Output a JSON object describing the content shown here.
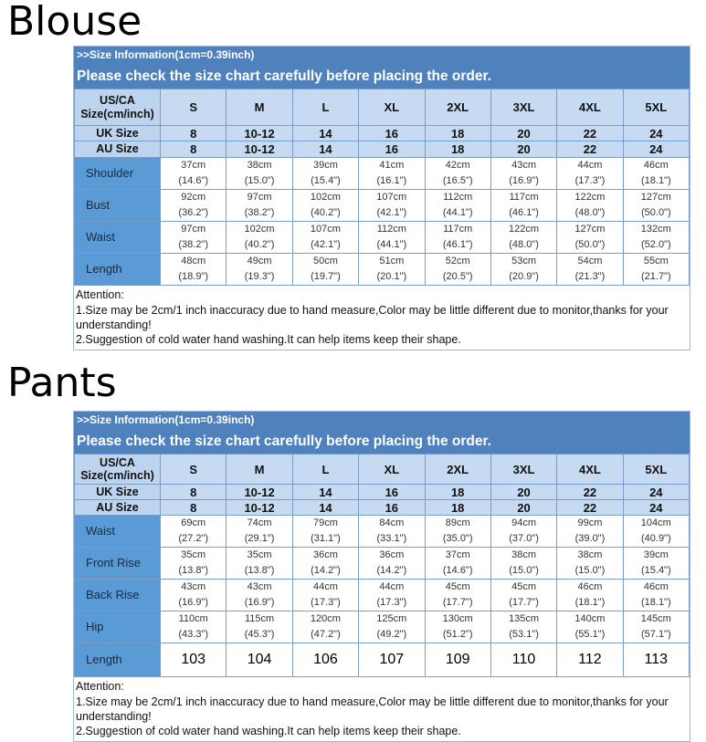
{
  "sections": [
    {
      "title": "Blouse",
      "info": ">>Size Information(1cm=0.39inch)",
      "notice": "Please check the size chart carefully before placing the order.",
      "size_header": {
        "label": "US/CA Size(cm/inch)",
        "values": [
          "S",
          "M",
          "L",
          "XL",
          "2XL",
          "3XL",
          "4XL",
          "5XL"
        ]
      },
      "uk": {
        "label": "UK Size",
        "values": [
          "8",
          "10-12",
          "14",
          "16",
          "18",
          "20",
          "22",
          "24"
        ]
      },
      "au": {
        "label": "AU Size",
        "values": [
          "8",
          "10-12",
          "14",
          "16",
          "18",
          "20",
          "22",
          "24"
        ]
      },
      "rows": [
        {
          "label": "Shoulder",
          "cm": [
            "37cm",
            "38cm",
            "39cm",
            "41cm",
            "42cm",
            "43cm",
            "44cm",
            "46cm"
          ],
          "inch": [
            "(14.6\")",
            "(15.0\")",
            "(15.4\")",
            "(16.1\")",
            "(16.5\")",
            "(16.9\")",
            "(17.3\")",
            "(18.1\")"
          ]
        },
        {
          "label": "Bust",
          "cm": [
            "92cm",
            "97cm",
            "102cm",
            "107cm",
            "112cm",
            "117cm",
            "122cm",
            "127cm"
          ],
          "inch": [
            "(36.2\")",
            "(38.2\")",
            "(40.2\")",
            "(42.1\")",
            "(44.1\")",
            "(46.1\")",
            "(48.0\")",
            "(50.0\")"
          ]
        },
        {
          "label": "Waist",
          "cm": [
            "97cm",
            "102cm",
            "107cm",
            "112cm",
            "117cm",
            "122cm",
            "127cm",
            "132cm"
          ],
          "inch": [
            "(38.2\")",
            "(40.2\")",
            "(42.1\")",
            "(44.1\")",
            "(46.1\")",
            "(48.0\")",
            "(50.0\")",
            "(52.0\")"
          ]
        },
        {
          "label": "Length",
          "cm": [
            "48cm",
            "49cm",
            "50cm",
            "51cm",
            "52cm",
            "53cm",
            "54cm",
            "55cm"
          ],
          "inch": [
            "(18.9\")",
            "(19.3\")",
            "(19.7\")",
            "(20.1\")",
            "(20.5\")",
            "(20.9\")",
            "(21.3\")",
            "(21.7\")"
          ]
        }
      ],
      "attention": [
        "Attention:",
        "1.Size may be 2cm/1 inch inaccuracy due to hand measure,Color may be little different due to monitor,thanks for your understanding!",
        "2.Suggestion of cold water hand washing.It can help items keep their shape."
      ]
    },
    {
      "title": "Pants",
      "info": ">>Size Information(1cm=0.39inch)",
      "notice": "Please check the size chart carefully before placing the order.",
      "size_header": {
        "label": "US/CA Size(cm/inch)",
        "values": [
          "S",
          "M",
          "L",
          "XL",
          "2XL",
          "3XL",
          "4XL",
          "5XL"
        ]
      },
      "uk": {
        "label": "UK Size",
        "values": [
          "8",
          "10-12",
          "14",
          "16",
          "18",
          "20",
          "22",
          "24"
        ]
      },
      "au": {
        "label": "AU Size",
        "values": [
          "8",
          "10-12",
          "14",
          "16",
          "18",
          "20",
          "22",
          "24"
        ]
      },
      "rows": [
        {
          "label": "Waist",
          "cm": [
            "69cm",
            "74cm",
            "79cm",
            "84cm",
            "89cm",
            "94cm",
            "99cm",
            "104cm"
          ],
          "inch": [
            "(27.2\")",
            "(29.1\")",
            "(31.1\")",
            "(33.1\")",
            "(35.0\")",
            "(37.0\")",
            "(39.0\")",
            "(40.9\")"
          ]
        },
        {
          "label": "Front Rise",
          "cm": [
            "35cm",
            "35cm",
            "36cm",
            "36cm",
            "37cm",
            "38cm",
            "38cm",
            "39cm"
          ],
          "inch": [
            "(13.8\")",
            "(13.8\")",
            "(14.2\")",
            "(14.2\")",
            "(14.6\")",
            "(15.0\")",
            "(15.0\")",
            "(15.4\")"
          ]
        },
        {
          "label": "Back Rise",
          "cm": [
            "43cm",
            "43cm",
            "44cm",
            "44cm",
            "45cm",
            "45cm",
            "46cm",
            "46cm"
          ],
          "inch": [
            "(16.9\")",
            "(16.9\")",
            "(17.3\")",
            "(17.3\")",
            "(17.7\")",
            "(17.7\")",
            "(18.1\")",
            "(18.1\")"
          ]
        },
        {
          "label": "Hip",
          "cm": [
            "110cm",
            "115cm",
            "120cm",
            "125cm",
            "130cm",
            "135cm",
            "140cm",
            "145cm"
          ],
          "inch": [
            "(43.3\")",
            "(45.3\")",
            "(47.2\")",
            "(49.2\")",
            "(51.2\")",
            "(53.1\")",
            "(55.1\")",
            "(57.1\")"
          ]
        },
        {
          "label": "Length",
          "values": [
            "103",
            "104",
            "106",
            "107",
            "109",
            "110",
            "112",
            "113"
          ]
        }
      ],
      "attention": [
        "Attention:",
        "1.Size may be 2cm/1 inch inaccuracy due to hand measure,Color may be little different due to monitor,thanks for your understanding!",
        "2.Suggestion of cold water hand washing.It can help items keep their shape."
      ]
    }
  ]
}
